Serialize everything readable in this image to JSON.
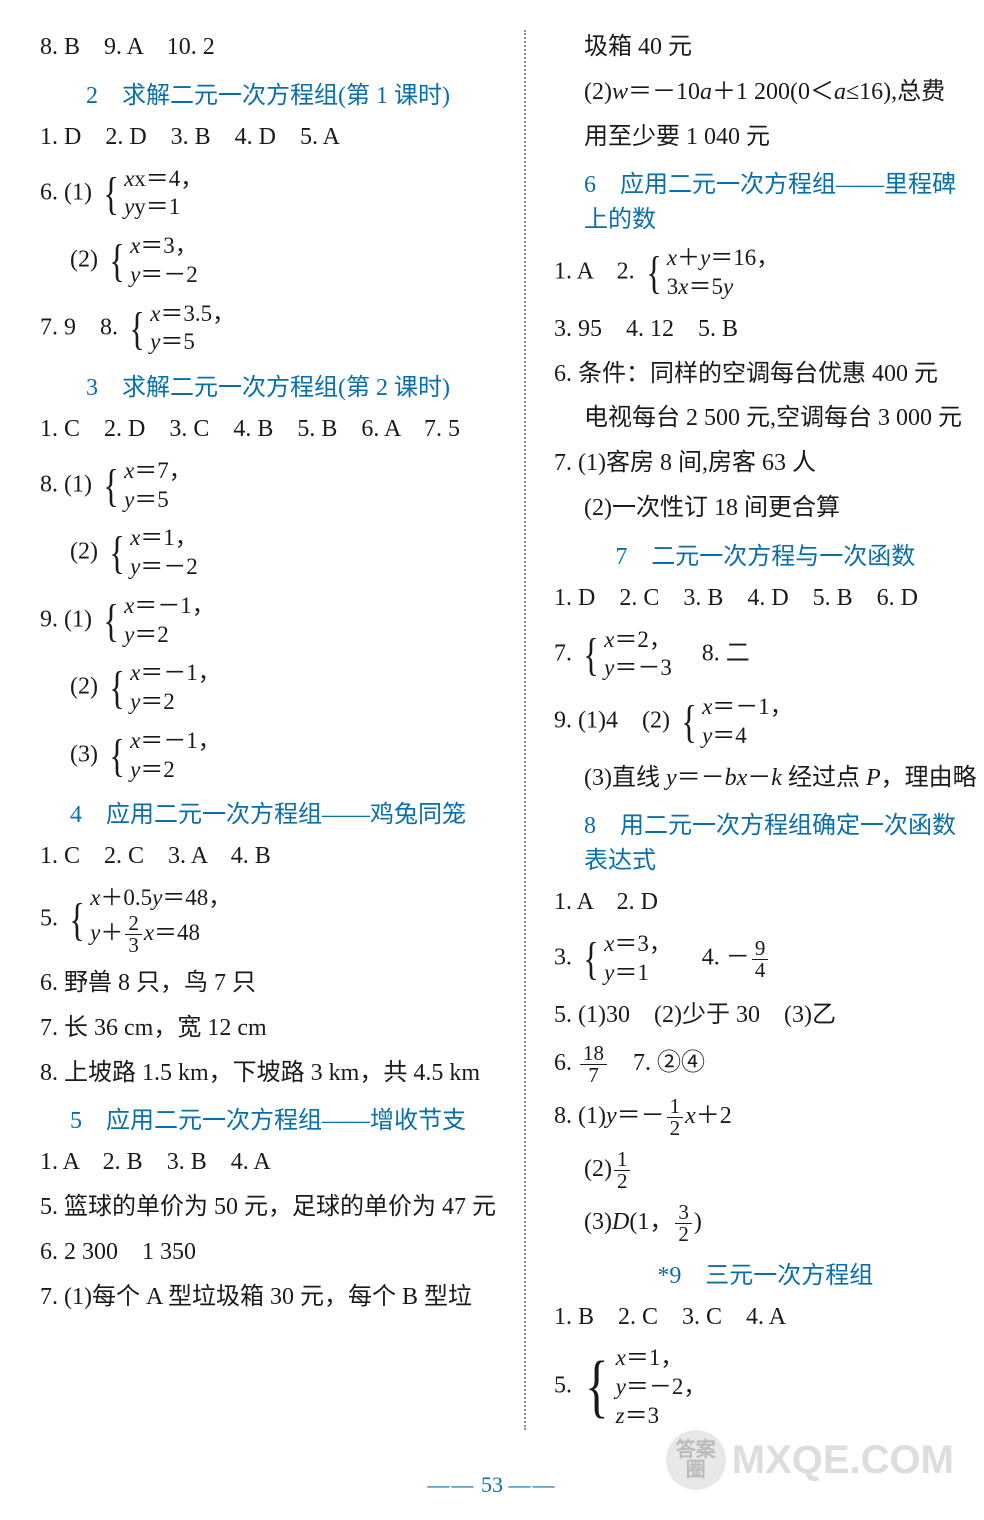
{
  "page_number": "53",
  "colors": {
    "heading": "#0a6ea8",
    "text": "#1a1a1a",
    "divider": "#888888",
    "bg": "#ffffff"
  },
  "watermark": {
    "circle_top": "答案",
    "circle_bot": "圈",
    "text": "MXQE.COM"
  },
  "left": {
    "l01": "8. B　9. A　10. 2",
    "h1": "2　求解二元一次方程组(第 1 课时)",
    "l02": "1. D　2. D　3. B　4. D　5. A",
    "l03_pre": "6. (1)",
    "l03s": {
      "a": "x＝4，",
      "b": "y＝1"
    },
    "l04_pre": "　 (2)",
    "l04s": {
      "a": "x＝3，",
      "b": "y＝－2"
    },
    "l05a": "7. 9　8.",
    "l05s": {
      "a": "x＝3.5，",
      "b": "y＝5"
    },
    "h2": "3　求解二元一次方程组(第 2 课时)",
    "l06": "1. C　2. D　3. C　4. B　5. B　6. A　7. 5",
    "l07_pre": "8. (1)",
    "l07s": {
      "a": "x＝7，",
      "b": "y＝5"
    },
    "l08_pre": "　 (2)",
    "l08s": {
      "a": "x＝1，",
      "b": "y＝－2"
    },
    "l09_pre": "9. (1)",
    "l09s": {
      "a": "x＝－1，",
      "b": "y＝2"
    },
    "l10_pre": "　 (2)",
    "l10s": {
      "a": "x＝－1，",
      "b": "y＝2"
    },
    "l11_pre": "　 (3)",
    "l11s": {
      "a": "x＝－1，",
      "b": "y＝2"
    },
    "h3": "4　应用二元一次方程组——鸡兔同笼",
    "l12": "1. C　2. C　3. A　4. B",
    "l13_pre": "5.",
    "l13s": {
      "a_pre": "x＋0.5y＝48，",
      "b_pre": "y＋",
      "b_frac_n": "2",
      "b_frac_d": "3",
      "b_post": "x＝48"
    },
    "l14": "6. 野兽 8 只，鸟 7 只",
    "l15": "7. 长 36 cm，宽 12 cm",
    "l16": "8. 上坡路 1.5 km，下坡路 3 km，共 4.5 km",
    "h4": "5　应用二元一次方程组——增收节支",
    "l17": "1. A　2. B　3. B　4. A",
    "l18": "5. 篮球的单价为 50 元，足球的单价为 47 元",
    "l19": "6. 2 300　1 350",
    "l20": "7. (1)每个 A 型垃圾箱 30 元，每个 B 型垃"
  },
  "right": {
    "r00a": "　 圾箱 40 元",
    "r00b": "　 (2)w＝－10a＋1 200(0＜a≤16),总费",
    "r00c": "　 用至少要 1 040 元",
    "h5": "6　应用二元一次方程组——里程碑上的数",
    "r01a": "1. A　2.",
    "r01s": {
      "a": "x＋y＝16，",
      "b": "3x＝5y"
    },
    "r02": "3. 95　4. 12　5. B",
    "r03": "6. 条件：同样的空调每台优惠 400 元",
    "r04": "　 电视每台 2 500 元,空调每台 3 000 元",
    "r05": "7. (1)客房 8 间,房客 63 人",
    "r06": "　 (2)一次性订 18 间更合算",
    "h6": "7　二元一次方程与一次函数",
    "r07": "1. D　2. C　3. B　4. D　5. B　6. D",
    "r08_pre": "7.",
    "r08s": {
      "a": "x＝2，",
      "b": "y＝－3"
    },
    "r08_post": "　8. 二",
    "r09a": "9. (1)4　(2)",
    "r09s": {
      "a": "x＝－1，",
      "b": "y＝4"
    },
    "r10": "　 (3)直线 y＝－bx－k 经过点 P，理由略",
    "h7": "8　用二元一次方程组确定一次函数表达式",
    "r11": "1. A　2. D",
    "r12_pre": "3.",
    "r12s": {
      "a": "x＝3，",
      "b": "y＝1"
    },
    "r12_post_pre": "　4. －",
    "r12_frac": {
      "n": "9",
      "d": "4"
    },
    "r13": "5. (1)30　(2)少于 30　(3)乙",
    "r14_pre": "6. ",
    "r14_frac": {
      "n": "18",
      "d": "7"
    },
    "r14_post": "　7. ②④",
    "r15_pre": "8. (1)y＝－",
    "r15_frac": {
      "n": "1",
      "d": "2"
    },
    "r15_post": "x＋2",
    "r16_pre": "　 (2)",
    "r16_frac": {
      "n": "1",
      "d": "2"
    },
    "r17_pre": "　 (3)D(1，",
    "r17_frac": {
      "n": "3",
      "d": "2"
    },
    "r17_post": ")",
    "h8": "*9　三元一次方程组",
    "r18": "1. B　2. C　3. C　4. A",
    "r19_pre": "5.",
    "r19s": {
      "a": "x＝1，",
      "b": "y＝－2，",
      "c": "z＝3"
    }
  }
}
